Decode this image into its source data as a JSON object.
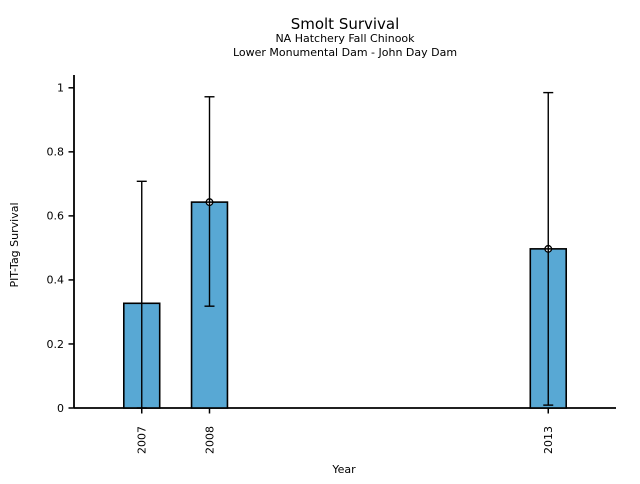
{
  "figure": {
    "background": "#ffffff"
  },
  "chart_data": {
    "type": "bar",
    "title": "Smolt Survival",
    "subtitles": [
      "NA Hatchery Fall Chinook",
      "Lower Monumental Dam - John Day Dam"
    ],
    "xlabel": "Year",
    "ylabel": "PIT-Tag Survival",
    "categories": [
      2007,
      2008,
      2013
    ],
    "xtick_labels": [
      "2007",
      "2008",
      "2013"
    ],
    "values": [
      0.327,
      0.643,
      0.497
    ],
    "error_low": [
      0.0,
      0.318,
      0.009
    ],
    "error_high": [
      0.708,
      0.972,
      0.985
    ],
    "point_markers": [
      false,
      true,
      true
    ],
    "xlim": [
      2006,
      2014
    ],
    "ylim": [
      0,
      1.04
    ],
    "yticks": [
      0,
      0.2,
      0.4,
      0.6,
      0.8,
      1
    ],
    "ytick_labels": [
      "0",
      "0.2",
      "0.4",
      "0.6",
      "0.8",
      "1"
    ],
    "bar_width_years": 0.53,
    "grid": false,
    "legend": null,
    "colors": {
      "bar_fill": "#58a8d4",
      "bar_edge": "#000000",
      "error_bar": "#000000",
      "marker_fill": "#ffffff",
      "marker_edge": "#000000",
      "axis": "#000000",
      "text": "#000000"
    }
  }
}
